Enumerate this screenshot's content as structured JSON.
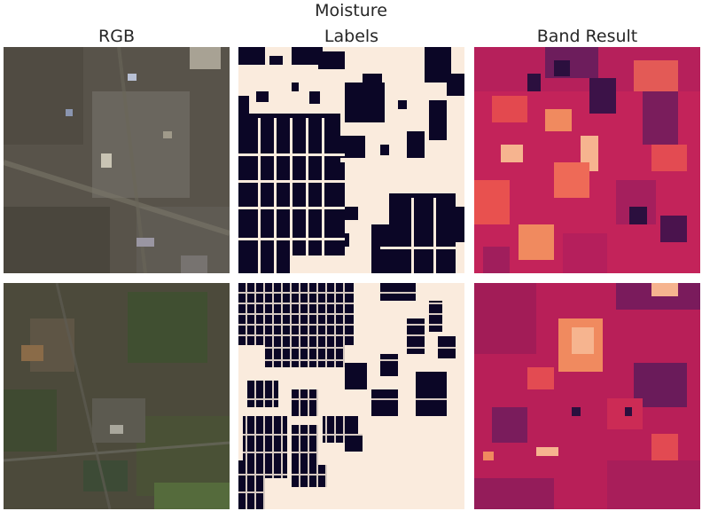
{
  "figure": {
    "title": "Moisture",
    "columns": [
      {
        "label": "RGB"
      },
      {
        "label": "Labels"
      },
      {
        "label": "Band Result"
      }
    ],
    "rows": 2
  },
  "colors": {
    "labels_building": "#0b0626",
    "labels_background": "#faebdd",
    "band_low": "#2b0f3e",
    "band_mid": "#c81e53",
    "band_high": "#f6b48f",
    "rgb_row1_base": "#5a5547",
    "rgb_row2_base": "#4b4a3a"
  }
}
